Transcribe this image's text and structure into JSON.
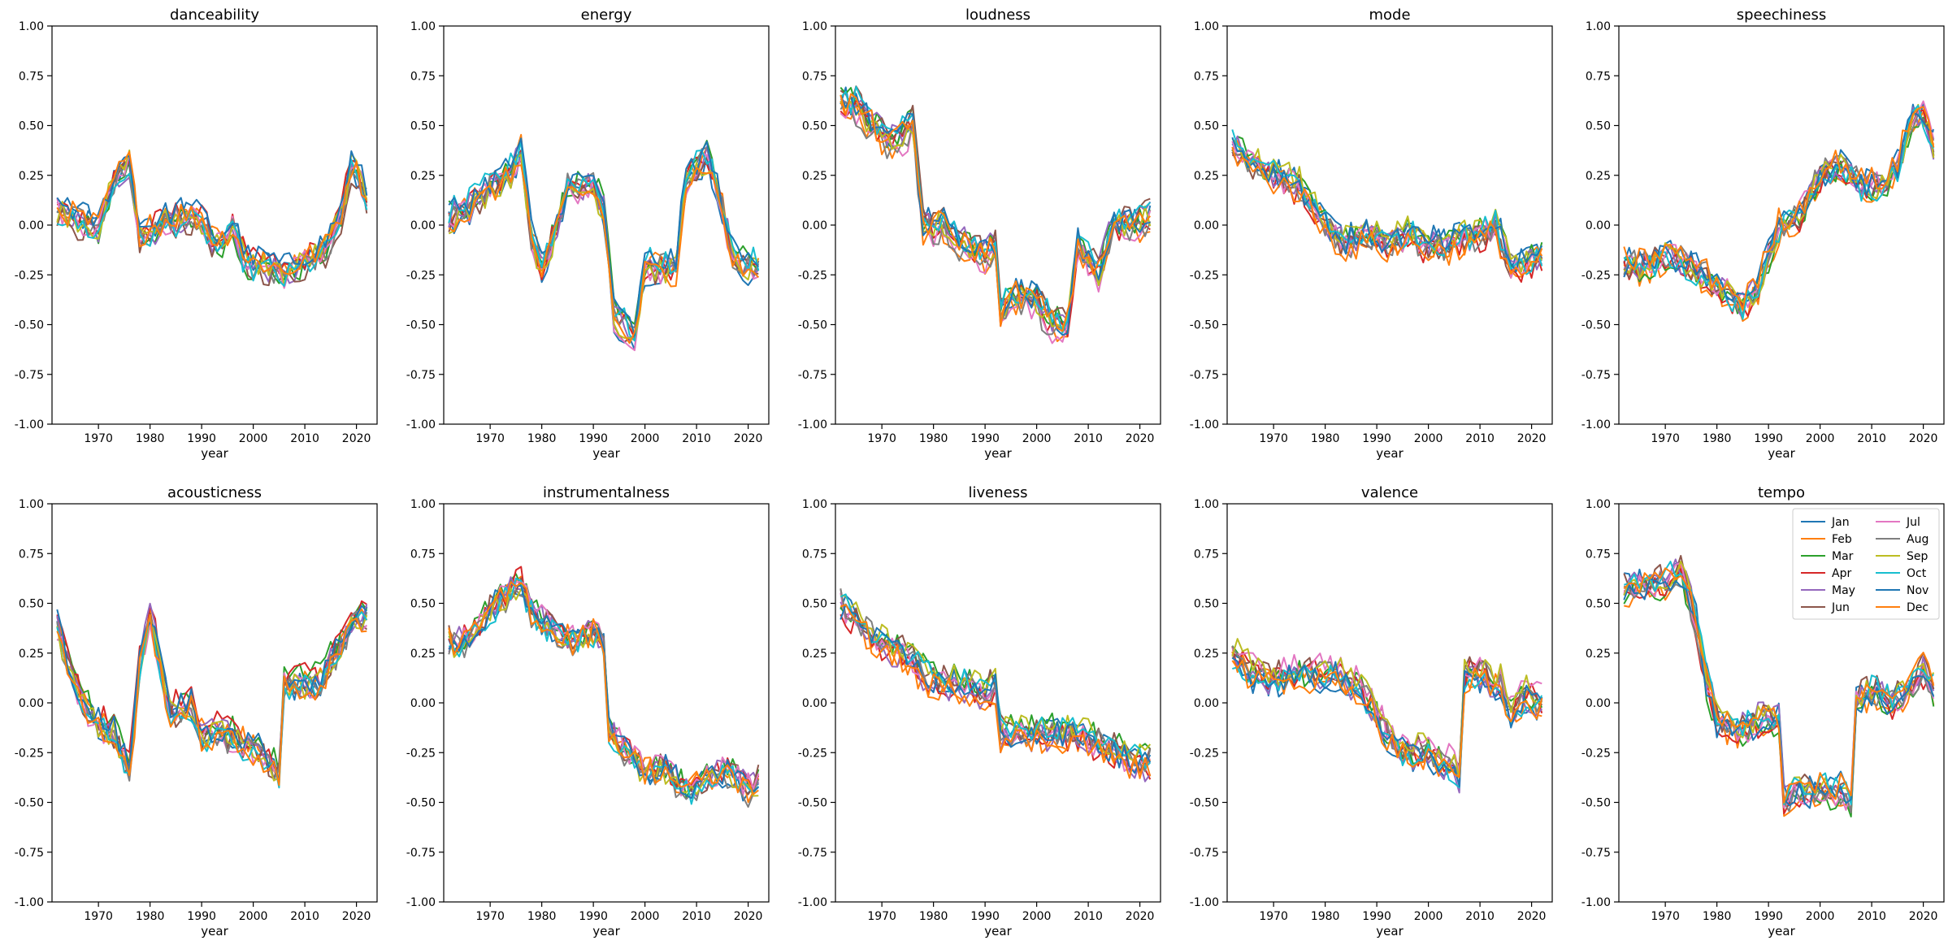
{
  "palette": [
    "#1f77b4",
    "#ff7f0e",
    "#2ca02c",
    "#d62728",
    "#9467bd",
    "#8c564b",
    "#e377c2",
    "#7f7f7f",
    "#bcbd22",
    "#17becf",
    "#1f77b4",
    "#ff7f0e"
  ],
  "legend_labels": [
    "Jan",
    "Feb",
    "Mar",
    "Apr",
    "May",
    "Jun",
    "Jul",
    "Aug",
    "Sep",
    "Oct",
    "Nov",
    "Dec"
  ],
  "chart_data": [
    {
      "type": "line",
      "title": "danceability",
      "xlabel": "year",
      "ylim": [
        -1,
        1
      ],
      "xlim": [
        1961,
        2024
      ],
      "knots": [
        [
          1962,
          0.08
        ],
        [
          1966,
          0.03
        ],
        [
          1970,
          -0.02
        ],
        [
          1973,
          0.22
        ],
        [
          1976,
          0.32
        ],
        [
          1978,
          -0.05
        ],
        [
          1982,
          0.0
        ],
        [
          1986,
          0.05
        ],
        [
          1990,
          0.02
        ],
        [
          1993,
          -0.1
        ],
        [
          1996,
          -0.02
        ],
        [
          1999,
          -0.2
        ],
        [
          2003,
          -0.2
        ],
        [
          2006,
          -0.25
        ],
        [
          2010,
          -0.18
        ],
        [
          2014,
          -0.12
        ],
        [
          2017,
          0.05
        ],
        [
          2019,
          0.3
        ],
        [
          2022,
          0.15
        ]
      ],
      "noise": 0.07
    },
    {
      "type": "line",
      "title": "energy",
      "xlabel": "year",
      "ylim": [
        -1,
        1
      ],
      "xlim": [
        1961,
        2024
      ],
      "knots": [
        [
          1962,
          0.05
        ],
        [
          1966,
          0.1
        ],
        [
          1970,
          0.2
        ],
        [
          1974,
          0.28
        ],
        [
          1976,
          0.4
        ],
        [
          1978,
          -0.05
        ],
        [
          1980,
          -0.2
        ],
        [
          1983,
          0.0
        ],
        [
          1985,
          0.2
        ],
        [
          1990,
          0.2
        ],
        [
          1992,
          0.1
        ],
        [
          1994,
          -0.45
        ],
        [
          1998,
          -0.55
        ],
        [
          2000,
          -0.2
        ],
        [
          2003,
          -0.2
        ],
        [
          2006,
          -0.2
        ],
        [
          2008,
          0.25
        ],
        [
          2012,
          0.35
        ],
        [
          2015,
          0.1
        ],
        [
          2017,
          -0.15
        ],
        [
          2020,
          -0.2
        ],
        [
          2022,
          -0.2
        ]
      ],
      "noise": 0.07
    },
    {
      "type": "line",
      "title": "loudness",
      "xlabel": "year",
      "ylim": [
        -1,
        1
      ],
      "xlim": [
        1961,
        2024
      ],
      "knots": [
        [
          1962,
          0.6
        ],
        [
          1965,
          0.6
        ],
        [
          1968,
          0.5
        ],
        [
          1972,
          0.4
        ],
        [
          1976,
          0.5
        ],
        [
          1978,
          0.0
        ],
        [
          1982,
          0.0
        ],
        [
          1986,
          -0.1
        ],
        [
          1990,
          -0.15
        ],
        [
          1992,
          -0.1
        ],
        [
          1993,
          -0.45
        ],
        [
          1996,
          -0.35
        ],
        [
          2000,
          -0.38
        ],
        [
          2003,
          -0.5
        ],
        [
          2006,
          -0.5
        ],
        [
          2008,
          -0.1
        ],
        [
          2012,
          -0.25
        ],
        [
          2015,
          0.0
        ],
        [
          2020,
          0.0
        ],
        [
          2022,
          0.05
        ]
      ],
      "noise": 0.07
    },
    {
      "type": "line",
      "title": "mode",
      "xlabel": "year",
      "ylim": [
        -1,
        1
      ],
      "xlim": [
        1961,
        2024
      ],
      "knots": [
        [
          1962,
          0.4
        ],
        [
          1966,
          0.3
        ],
        [
          1970,
          0.25
        ],
        [
          1975,
          0.2
        ],
        [
          1980,
          0.0
        ],
        [
          1984,
          -0.1
        ],
        [
          1988,
          -0.05
        ],
        [
          1992,
          -0.1
        ],
        [
          1996,
          -0.05
        ],
        [
          2000,
          -0.1
        ],
        [
          2004,
          -0.1
        ],
        [
          2010,
          -0.05
        ],
        [
          2013,
          0.0
        ],
        [
          2016,
          -0.2
        ],
        [
          2019,
          -0.2
        ],
        [
          2022,
          -0.15
        ]
      ],
      "noise": 0.07
    },
    {
      "type": "line",
      "title": "speechiness",
      "xlabel": "year",
      "ylim": [
        -1,
        1
      ],
      "xlim": [
        1961,
        2024
      ],
      "knots": [
        [
          1962,
          -0.2
        ],
        [
          1966,
          -0.2
        ],
        [
          1970,
          -0.15
        ],
        [
          1975,
          -0.2
        ],
        [
          1980,
          -0.3
        ],
        [
          1985,
          -0.4
        ],
        [
          1988,
          -0.3
        ],
        [
          1992,
          0.0
        ],
        [
          1996,
          0.05
        ],
        [
          2000,
          0.25
        ],
        [
          2004,
          0.3
        ],
        [
          2008,
          0.2
        ],
        [
          2012,
          0.2
        ],
        [
          2015,
          0.3
        ],
        [
          2018,
          0.55
        ],
        [
          2020,
          0.55
        ],
        [
          2022,
          0.4
        ]
      ],
      "noise": 0.07
    },
    {
      "type": "line",
      "title": "acousticness",
      "xlabel": "year",
      "ylim": [
        -1,
        1
      ],
      "xlim": [
        1961,
        2024
      ],
      "knots": [
        [
          1962,
          0.4
        ],
        [
          1964,
          0.2
        ],
        [
          1967,
          0.0
        ],
        [
          1970,
          -0.1
        ],
        [
          1973,
          -0.15
        ],
        [
          1976,
          -0.35
        ],
        [
          1978,
          0.2
        ],
        [
          1980,
          0.45
        ],
        [
          1982,
          0.2
        ],
        [
          1984,
          -0.05
        ],
        [
          1988,
          0.0
        ],
        [
          1990,
          -0.15
        ],
        [
          1994,
          -0.15
        ],
        [
          1998,
          -0.2
        ],
        [
          2002,
          -0.25
        ],
        [
          2005,
          -0.35
        ],
        [
          2006,
          0.1
        ],
        [
          2010,
          0.1
        ],
        [
          2013,
          0.1
        ],
        [
          2017,
          0.3
        ],
        [
          2020,
          0.45
        ],
        [
          2022,
          0.45
        ]
      ],
      "noise": 0.07
    },
    {
      "type": "line",
      "title": "instrumentalness",
      "xlabel": "year",
      "ylim": [
        -1,
        1
      ],
      "xlim": [
        1961,
        2024
      ],
      "knots": [
        [
          1962,
          0.3
        ],
        [
          1966,
          0.3
        ],
        [
          1970,
          0.45
        ],
        [
          1974,
          0.55
        ],
        [
          1976,
          0.6
        ],
        [
          1978,
          0.45
        ],
        [
          1982,
          0.35
        ],
        [
          1986,
          0.3
        ],
        [
          1990,
          0.35
        ],
        [
          1992,
          0.3
        ],
        [
          1993,
          -0.15
        ],
        [
          1996,
          -0.25
        ],
        [
          2000,
          -0.35
        ],
        [
          2004,
          -0.35
        ],
        [
          2008,
          -0.45
        ],
        [
          2012,
          -0.4
        ],
        [
          2016,
          -0.35
        ],
        [
          2020,
          -0.45
        ],
        [
          2022,
          -0.4
        ]
      ],
      "noise": 0.07
    },
    {
      "type": "line",
      "title": "liveness",
      "xlabel": "year",
      "ylim": [
        -1,
        1
      ],
      "xlim": [
        1961,
        2024
      ],
      "knots": [
        [
          1962,
          0.5
        ],
        [
          1966,
          0.4
        ],
        [
          1970,
          0.3
        ],
        [
          1974,
          0.25
        ],
        [
          1978,
          0.15
        ],
        [
          1982,
          0.1
        ],
        [
          1986,
          0.1
        ],
        [
          1990,
          0.05
        ],
        [
          1992,
          0.1
        ],
        [
          1993,
          -0.15
        ],
        [
          1996,
          -0.15
        ],
        [
          2000,
          -0.15
        ],
        [
          2004,
          -0.15
        ],
        [
          2008,
          -0.15
        ],
        [
          2012,
          -0.2
        ],
        [
          2016,
          -0.25
        ],
        [
          2020,
          -0.3
        ],
        [
          2022,
          -0.3
        ]
      ],
      "noise": 0.07
    },
    {
      "type": "line",
      "title": "valence",
      "xlabel": "year",
      "ylim": [
        -1,
        1
      ],
      "xlim": [
        1961,
        2024
      ],
      "knots": [
        [
          1962,
          0.25
        ],
        [
          1966,
          0.15
        ],
        [
          1970,
          0.12
        ],
        [
          1974,
          0.15
        ],
        [
          1978,
          0.15
        ],
        [
          1982,
          0.15
        ],
        [
          1986,
          0.1
        ],
        [
          1989,
          0.0
        ],
        [
          1992,
          -0.15
        ],
        [
          1996,
          -0.25
        ],
        [
          2000,
          -0.25
        ],
        [
          2004,
          -0.3
        ],
        [
          2006,
          -0.35
        ],
        [
          2007,
          0.15
        ],
        [
          2010,
          0.15
        ],
        [
          2014,
          0.1
        ],
        [
          2016,
          -0.05
        ],
        [
          2019,
          0.05
        ],
        [
          2022,
          0.0
        ]
      ],
      "noise": 0.07
    },
    {
      "type": "line",
      "title": "tempo",
      "xlabel": "year",
      "ylim": [
        -1,
        1
      ],
      "xlim": [
        1961,
        2024
      ],
      "knots": [
        [
          1962,
          0.55
        ],
        [
          1966,
          0.6
        ],
        [
          1970,
          0.6
        ],
        [
          1973,
          0.65
        ],
        [
          1976,
          0.4
        ],
        [
          1978,
          0.1
        ],
        [
          1980,
          -0.1
        ],
        [
          1984,
          -0.15
        ],
        [
          1988,
          -0.1
        ],
        [
          1992,
          -0.1
        ],
        [
          1993,
          -0.5
        ],
        [
          1996,
          -0.45
        ],
        [
          2000,
          -0.45
        ],
        [
          2004,
          -0.45
        ],
        [
          2006,
          -0.5
        ],
        [
          2007,
          0.0
        ],
        [
          2010,
          0.05
        ],
        [
          2014,
          0.0
        ],
        [
          2017,
          0.05
        ],
        [
          2020,
          0.15
        ],
        [
          2022,
          0.05
        ]
      ],
      "noise": 0.07,
      "legend": "upper right"
    }
  ]
}
